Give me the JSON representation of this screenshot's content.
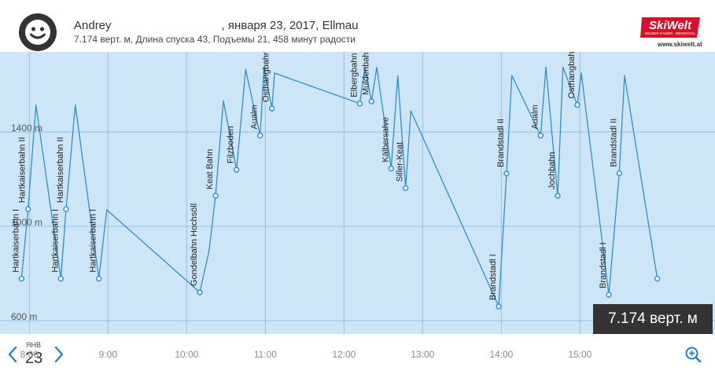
{
  "header": {
    "user_name": "Andrey",
    "date_place": ", января 23, 2017, Ellmau",
    "stats": "7.174 верт. м, Длина спуска 43, Подъемы 21, 458 минут радости",
    "logo_text": "SkiWelt",
    "logo_tagline": "WILDER KAISER · BRIXENTAL",
    "logo_url": "www.skiwelt.at"
  },
  "colors": {
    "chart_bg": "#cde6f7",
    "line": "#2e8fce",
    "grid": "#8fc3e8",
    "badge_bg": "#333333",
    "logo_red": "#d9102c",
    "nav_blue": "#1f7fc4"
  },
  "badge": {
    "text": "7.174 верт. м"
  },
  "footer": {
    "month": "ЯНВ",
    "day": "23",
    "time_labels": [
      "8:00",
      "9:00",
      "10:00",
      "11:00",
      "12:00",
      "13:00",
      "14:00",
      "15:00"
    ],
    "prev_icon": "chevron-left-icon",
    "next_icon": "chevron-right-icon",
    "zoom_icon": "zoom-in-icon"
  },
  "chart_data": {
    "type": "line",
    "x_unit": "time",
    "y_unit": "m",
    "yticks": [
      "1400 m",
      "1000 m",
      "600 m"
    ],
    "ytick_values": [
      1400,
      1000,
      600
    ],
    "ylim": [
      600,
      1800
    ],
    "xlim": [
      "7:40",
      "15:59"
    ],
    "xticks": [
      "8:00",
      "9:00",
      "10:00",
      "11:00",
      "12:00",
      "13:00",
      "14:00",
      "15:00"
    ],
    "grid": true,
    "points": [
      {
        "t": "7:54",
        "y": 778
      },
      {
        "t": "7:59",
        "y": 1073
      },
      {
        "t": "8:05",
        "y": 1515
      },
      {
        "t": "8:24",
        "y": 778
      },
      {
        "t": "8:28",
        "y": 1073
      },
      {
        "t": "8:35",
        "y": 1515
      },
      {
        "t": "8:53",
        "y": 778
      },
      {
        "t": "8:59",
        "y": 1070
      },
      {
        "t": "10:10",
        "y": 720
      },
      {
        "t": "10:17",
        "y": 895
      },
      {
        "t": "10:22",
        "y": 1130
      },
      {
        "t": "10:28",
        "y": 1533
      },
      {
        "t": "10:38",
        "y": 1240
      },
      {
        "t": "10:45",
        "y": 1666
      },
      {
        "t": "10:56",
        "y": 1385
      },
      {
        "t": "10:59",
        "y": 1675
      },
      {
        "t": "11:05",
        "y": 1500
      },
      {
        "t": "11:07",
        "y": 1650
      },
      {
        "t": "12:12",
        "y": 1521
      },
      {
        "t": "12:16",
        "y": 1675
      },
      {
        "t": "12:21",
        "y": 1530
      },
      {
        "t": "12:25",
        "y": 1675
      },
      {
        "t": "12:36",
        "y": 1245
      },
      {
        "t": "12:41",
        "y": 1640
      },
      {
        "t": "12:47",
        "y": 1162
      },
      {
        "t": "12:51",
        "y": 1490
      },
      {
        "t": "13:58",
        "y": 660
      },
      {
        "t": "14:04",
        "y": 1224
      },
      {
        "t": "14:08",
        "y": 1640
      },
      {
        "t": "14:30",
        "y": 1385
      },
      {
        "t": "14:34",
        "y": 1675
      },
      {
        "t": "14:43",
        "y": 1130
      },
      {
        "t": "14:47",
        "y": 1675
      },
      {
        "t": "14:58",
        "y": 1515
      },
      {
        "t": "15:01",
        "y": 1650
      },
      {
        "t": "15:22",
        "y": 710
      },
      {
        "t": "15:30",
        "y": 1225
      },
      {
        "t": "15:34",
        "y": 1640
      },
      {
        "t": "15:59",
        "y": 778
      }
    ],
    "markers": [
      {
        "t": "7:54",
        "y": 778,
        "label": "Hartkaiserbahn I"
      },
      {
        "t": "7:59",
        "y": 1073,
        "label": "Hartkaiserbahn II"
      },
      {
        "t": "8:24",
        "y": 778,
        "label": "Hartkaiserbahn I"
      },
      {
        "t": "8:28",
        "y": 1073,
        "label": "Hartkaiserbahn II"
      },
      {
        "t": "8:53",
        "y": 778,
        "label": "Hartkaiserbahn I"
      },
      {
        "t": "10:10",
        "y": 720,
        "label": "Gondelbahn Hochsöll"
      },
      {
        "t": "10:22",
        "y": 1130,
        "label": "Keat Bahn"
      },
      {
        "t": "10:38",
        "y": 1240,
        "label": "Filzboden"
      },
      {
        "t": "10:56",
        "y": 1385,
        "label": "Aualm"
      },
      {
        "t": "11:05",
        "y": 1500,
        "label": "Osthangbahn"
      },
      {
        "t": "12:12",
        "y": 1521,
        "label": "Elbergbahn II"
      },
      {
        "t": "12:21",
        "y": 1530,
        "label": "Muldenbahn"
      },
      {
        "t": "12:36",
        "y": 1245,
        "label": "Kälbersalve"
      },
      {
        "t": "12:47",
        "y": 1162,
        "label": "Siller-Keat"
      },
      {
        "t": "13:58",
        "y": 660,
        "label": "Brandstadl I"
      },
      {
        "t": "14:04",
        "y": 1224,
        "label": "Brandstadl II"
      },
      {
        "t": "14:30",
        "y": 1385,
        "label": "Aualm"
      },
      {
        "t": "14:43",
        "y": 1130,
        "label": "Jochbahn"
      },
      {
        "t": "14:58",
        "y": 1515,
        "label": "Osthangbahn"
      },
      {
        "t": "15:22",
        "y": 710,
        "label": "Brandstadl I"
      },
      {
        "t": "15:30",
        "y": 1225,
        "label": "Brandstadl II"
      },
      {
        "t": "15:59",
        "y": 778,
        "label": ""
      }
    ]
  }
}
